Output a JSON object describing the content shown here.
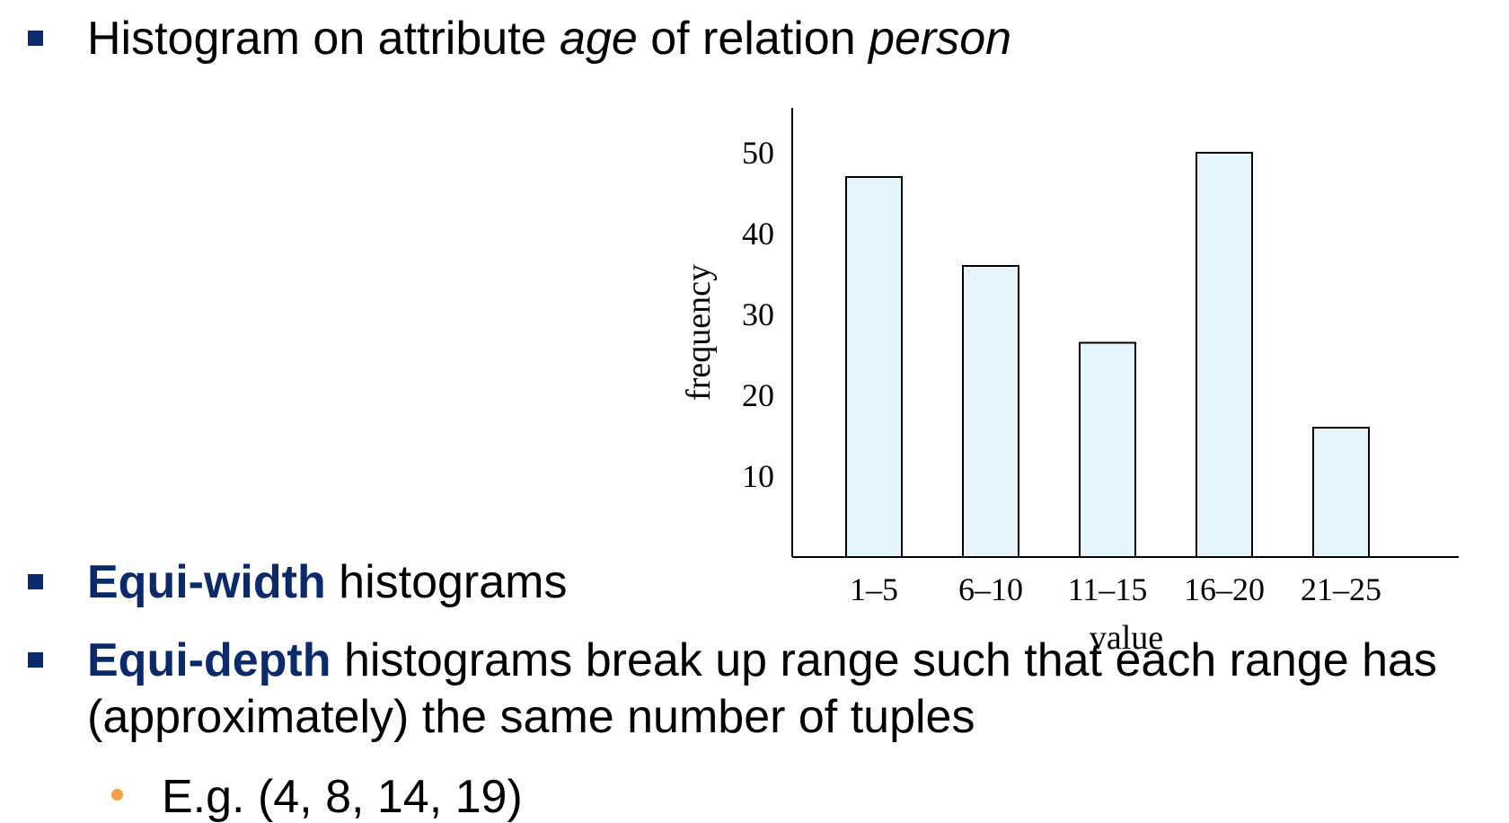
{
  "slide": {
    "bullet1": {
      "prefix": "Histogram on attribute ",
      "attr": "age",
      "middle": " of relation ",
      "relation": "person"
    },
    "bullet2": {
      "term": "Equi-width",
      "rest": " histograms"
    },
    "bullet3": {
      "term": "Equi-depth",
      "rest_line1": " histograms break up range such that each range has",
      "rest_line2": "(approximately) the same number of tuples"
    },
    "sub_bullet": {
      "text": "E.g. (4, 8, 14, 19)"
    }
  },
  "colors": {
    "bullet": "#0b2a6b",
    "emphasis": "#0b2a6b",
    "sub_bullet": "#f4a04a",
    "bar_fill": "#e6f5fc",
    "bar_stroke": "#000000"
  },
  "chart_data": {
    "type": "bar",
    "categories": [
      "1–5",
      "6–10",
      "11–15",
      "16–20",
      "21–25"
    ],
    "values": [
      47,
      36,
      26.5,
      50,
      16
    ],
    "xlabel": "value",
    "ylabel": "frequency",
    "yticks": [
      10,
      20,
      30,
      40,
      50
    ],
    "ylim": [
      0,
      55
    ],
    "grid": false,
    "legend": "none"
  }
}
